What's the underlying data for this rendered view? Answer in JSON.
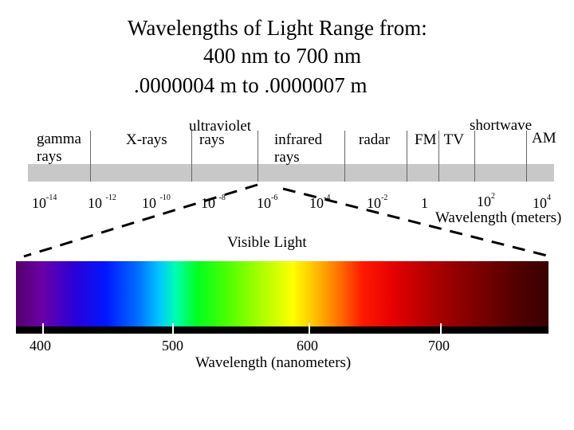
{
  "title": {
    "line1": "Wavelengths of Light Range from:",
    "line2": "400 nm to 700 nm",
    "line3": ".0000004 m to .0000007 m"
  },
  "em_spectrum": {
    "regions": {
      "gamma_1": "gamma",
      "gamma_2": "rays",
      "xrays": "X-rays",
      "uv_1": "ultraviolet",
      "uv_2": "rays",
      "ir_1": "infrared",
      "ir_2": "rays",
      "radar": "radar",
      "fm_tv": "FM  TV",
      "shortwave": "shortwave",
      "am": "AM"
    },
    "ticks": [
      {
        "base": "10",
        "exp": "-14"
      },
      {
        "base": "10 ",
        "exp": "-12"
      },
      {
        "base": "10 ",
        "exp": "-10"
      },
      {
        "base": "10 ",
        "exp": "-8"
      },
      {
        "base": "10",
        "exp": "-6"
      },
      {
        "base": "10",
        "exp": "-4"
      },
      {
        "base": "10",
        "exp": "-2"
      },
      {
        "base": "1",
        "exp": ""
      },
      {
        "base": "10",
        "exp": "2"
      },
      {
        "base": "10",
        "exp": "4"
      }
    ],
    "axis_label": "Wavelength (meters)"
  },
  "visible": {
    "title": "Visible Light",
    "ticks": [
      "400",
      "500",
      "600",
      "700"
    ],
    "axis_label": "Wavelength (nanometers)",
    "colors": [
      "#55006a",
      "#0018ff",
      "#00ff20",
      "#ffff00",
      "#ff1a00",
      "#3a0000"
    ]
  }
}
